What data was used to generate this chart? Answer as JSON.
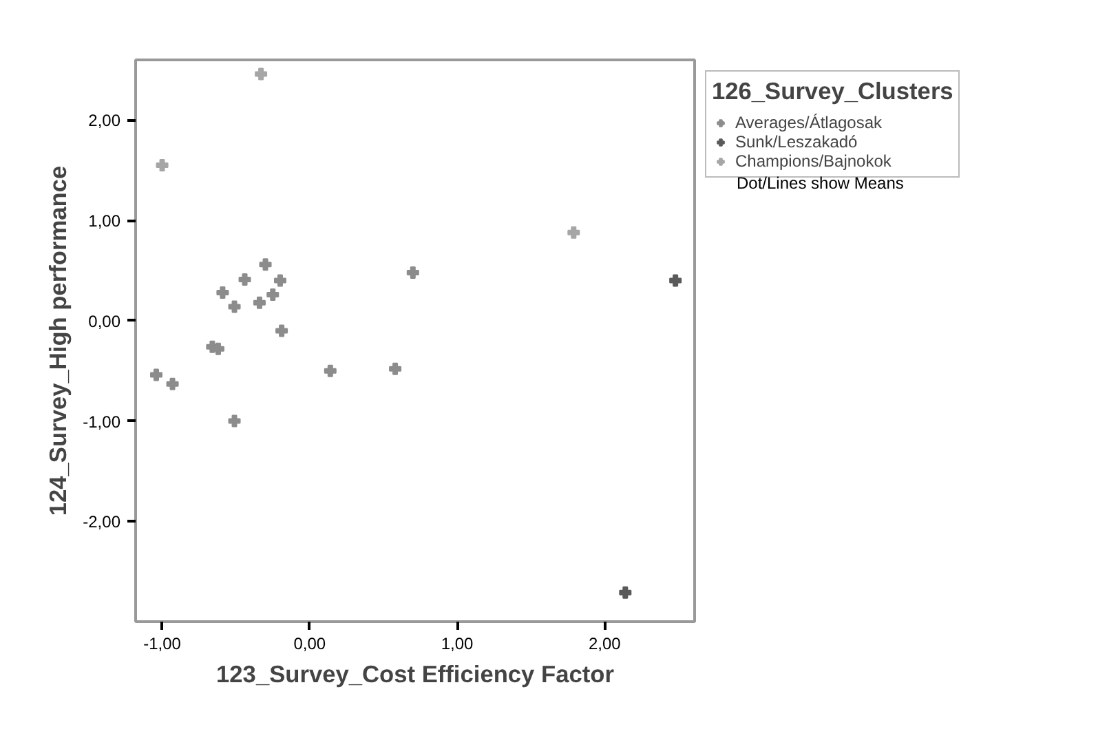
{
  "chart_data": {
    "type": "scatter",
    "xlabel": "123_Survey_Cost Efficiency Factor",
    "ylabel": "124_Survey_High performance",
    "legend_title": "126_Survey_Clusters",
    "annotations": [
      "Dot/Lines show Means"
    ],
    "xlim": [
      -1.18,
      2.61
    ],
    "ylim": [
      -3.0,
      2.6
    ],
    "xticks": [
      {
        "value": -1,
        "label": "-1,00"
      },
      {
        "value": 0,
        "label": "0,00"
      },
      {
        "value": 1,
        "label": "1,00"
      },
      {
        "value": 2,
        "label": "2,00"
      }
    ],
    "yticks": [
      {
        "value": -2,
        "label": "-2,00"
      },
      {
        "value": -1,
        "label": "-1,00"
      },
      {
        "value": 0,
        "label": "0,00"
      },
      {
        "value": 1,
        "label": "1,00"
      },
      {
        "value": 2,
        "label": "2,00"
      }
    ],
    "grid": false,
    "legend": "right",
    "marker": "cross",
    "series": [
      {
        "name": "Averages/Átlagosak",
        "color": "#8c8c8c",
        "x": [
          0.7,
          -0.3,
          -0.44,
          -0.2,
          -0.59,
          -0.25,
          -0.34,
          -0.51,
          -0.19,
          -0.66,
          -0.62,
          -1.04,
          -0.93,
          0.14,
          0.58,
          -0.51
        ],
        "values": [
          0.48,
          0.56,
          0.41,
          0.4,
          0.28,
          0.26,
          0.18,
          0.14,
          -0.1,
          -0.26,
          -0.28,
          -0.54,
          -0.63,
          -0.5,
          -0.48,
          -1.0
        ]
      },
      {
        "name": "Sunk/Leszakadó",
        "color": "#5a5a5a",
        "x": [
          2.14,
          2.48
        ],
        "values": [
          -2.71,
          0.4
        ]
      },
      {
        "name": "Champions/Bajnokok",
        "color": "#a6a6a6",
        "x": [
          -0.33,
          -1.0,
          1.79
        ],
        "values": [
          2.46,
          1.55,
          0.88
        ]
      }
    ]
  }
}
